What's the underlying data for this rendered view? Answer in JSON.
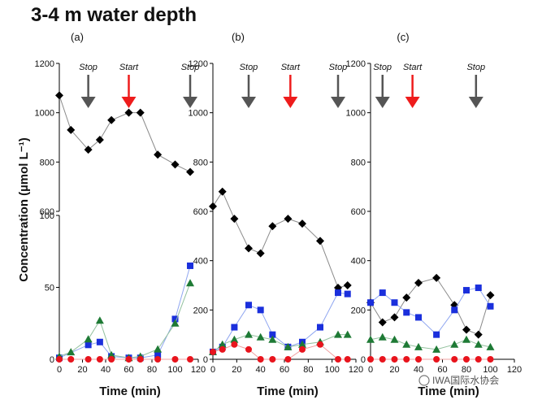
{
  "figure": {
    "title": "3-4 m water depth",
    "ylabel": "Concentration (µmol L⁻¹)",
    "xlabel": "Time (min)",
    "watermark": "IWA国际水协会",
    "colors": {
      "diamond": "#000000",
      "square": "#1a2fdc",
      "triangle": "#1e7a35",
      "circle": "#e8141d",
      "stop_arrow": "#555555",
      "start_arrow": "#ee1c1c",
      "line": "#999999"
    }
  },
  "chart_data": [
    {
      "type": "line",
      "label": "(a)",
      "broken_axis": true,
      "upper": {
        "ylim": [
          600,
          1200
        ],
        "yticks": [
          "600",
          "800",
          "1000",
          "1200"
        ]
      },
      "lower": {
        "ylim": [
          0,
          100
        ],
        "yticks": [
          "0",
          "50",
          "100"
        ]
      },
      "xlim": [
        0,
        120
      ],
      "xticks": [
        "0",
        "20",
        "40",
        "60",
        "80",
        "100",
        "120"
      ],
      "annotations": [
        {
          "text": "Stop",
          "x": 25,
          "kind": "stop"
        },
        {
          "text": "Start",
          "x": 60,
          "kind": "start"
        },
        {
          "text": "Stop",
          "x": 113,
          "kind": "stop"
        }
      ],
      "series": [
        {
          "marker": "diamond",
          "x": [
            0,
            10,
            25,
            35,
            45,
            60,
            70,
            85,
            100,
            113
          ],
          "y": [
            1070,
            930,
            850,
            890,
            970,
            1000,
            1000,
            830,
            790,
            760
          ]
        },
        {
          "marker": "square",
          "x": [
            0,
            25,
            35,
            45,
            60,
            70,
            85,
            100,
            113
          ],
          "y": [
            1,
            10,
            12,
            2,
            1,
            1,
            3,
            28,
            65
          ]
        },
        {
          "marker": "triangle",
          "x": [
            0,
            10,
            25,
            35,
            45,
            60,
            70,
            85,
            100,
            113
          ],
          "y": [
            2,
            5,
            14,
            27,
            3,
            1,
            2,
            7,
            25,
            53
          ]
        },
        {
          "marker": "circle",
          "x": [
            0,
            10,
            25,
            35,
            45,
            60,
            70,
            85,
            100,
            113
          ],
          "y": [
            0,
            0,
            0,
            0,
            0,
            0,
            0,
            0,
            0,
            0
          ]
        }
      ]
    },
    {
      "type": "line",
      "label": "(b)",
      "ylim": [
        0,
        1200
      ],
      "yticks": [
        "0",
        "200",
        "400",
        "600",
        "800",
        "1000",
        "1200"
      ],
      "xlim": [
        0,
        120
      ],
      "xticks": [
        "0",
        "20",
        "40",
        "60",
        "80",
        "100",
        "120"
      ],
      "annotations": [
        {
          "text": "Stop",
          "x": 30,
          "kind": "stop"
        },
        {
          "text": "Start",
          "x": 65,
          "kind": "start"
        },
        {
          "text": "Stop",
          "x": 105,
          "kind": "stop"
        }
      ],
      "series": [
        {
          "marker": "diamond",
          "x": [
            0,
            8,
            18,
            30,
            40,
            50,
            63,
            75,
            90,
            105,
            113
          ],
          "y": [
            620,
            680,
            570,
            450,
            430,
            540,
            570,
            550,
            480,
            290,
            300
          ]
        },
        {
          "marker": "square",
          "x": [
            0,
            8,
            18,
            30,
            40,
            50,
            63,
            75,
            90,
            105,
            113
          ],
          "y": [
            30,
            50,
            130,
            220,
            200,
            100,
            50,
            70,
            130,
            270,
            265
          ]
        },
        {
          "marker": "triangle",
          "x": [
            0,
            8,
            18,
            30,
            40,
            50,
            63,
            75,
            90,
            105,
            113
          ],
          "y": [
            30,
            60,
            80,
            100,
            90,
            80,
            50,
            60,
            70,
            100,
            100
          ]
        },
        {
          "marker": "circle",
          "x": [
            0,
            8,
            18,
            30,
            40,
            50,
            63,
            75,
            90,
            105,
            113
          ],
          "y": [
            30,
            40,
            60,
            40,
            0,
            0,
            0,
            40,
            60,
            0,
            0
          ]
        }
      ]
    },
    {
      "type": "line",
      "label": "(c)",
      "ylim": [
        0,
        1200
      ],
      "yticks": [
        "0",
        "200",
        "400",
        "600",
        "800",
        "1000",
        "1200"
      ],
      "xlim": [
        0,
        120
      ],
      "xticks": [
        "0",
        "20",
        "40",
        "60",
        "80",
        "100",
        "120"
      ],
      "annotations": [
        {
          "text": "Stop",
          "x": 10,
          "kind": "stop"
        },
        {
          "text": "Start",
          "x": 35,
          "kind": "start"
        },
        {
          "text": "Stop",
          "x": 88,
          "kind": "stop"
        }
      ],
      "series": [
        {
          "marker": "diamond",
          "x": [
            0,
            10,
            20,
            30,
            40,
            55,
            70,
            80,
            90,
            100
          ],
          "y": [
            230,
            150,
            170,
            250,
            310,
            330,
            220,
            120,
            100,
            260
          ]
        },
        {
          "marker": "square",
          "x": [
            0,
            10,
            20,
            30,
            40,
            55,
            70,
            80,
            90,
            100
          ],
          "y": [
            230,
            270,
            230,
            190,
            170,
            100,
            200,
            280,
            290,
            215
          ]
        },
        {
          "marker": "triangle",
          "x": [
            0,
            10,
            20,
            30,
            40,
            55,
            70,
            80,
            90,
            100
          ],
          "y": [
            80,
            90,
            80,
            60,
            50,
            40,
            60,
            80,
            60,
            50
          ]
        },
        {
          "marker": "circle",
          "x": [
            0,
            10,
            20,
            30,
            40,
            55,
            70,
            80,
            90,
            100
          ],
          "y": [
            0,
            0,
            0,
            0,
            0,
            0,
            0,
            0,
            0,
            0
          ]
        }
      ]
    }
  ]
}
